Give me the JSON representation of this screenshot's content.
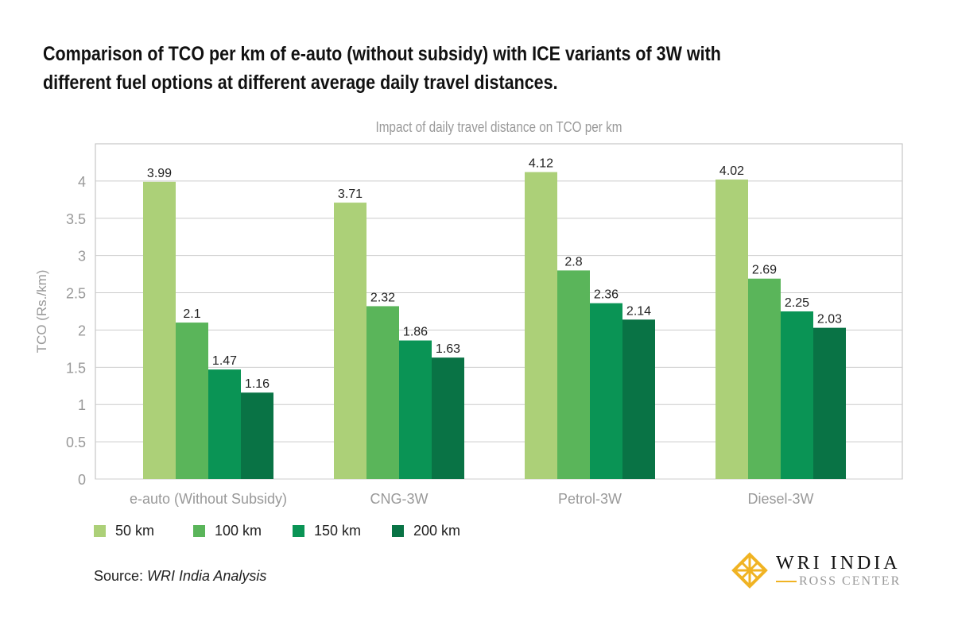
{
  "heading": "Comparison of TCO per km of e-auto (without subsidy) with ICE variants of 3W with different fuel options at different average daily travel distances.",
  "source_label": "Source: ",
  "source_value": "WRI India Analysis",
  "logo": {
    "line1": "WRI INDIA",
    "line2": "ROSS CENTER"
  },
  "chart_data": {
    "type": "bar",
    "title": "Impact of daily travel distance on TCO per km",
    "xlabel": "",
    "ylabel": "TCO (Rs./km)",
    "ylim": [
      0,
      4.5
    ],
    "yticks": [
      "0",
      "0.5",
      "1",
      "1.5",
      "2",
      "2.5",
      "3",
      "3.5",
      "4"
    ],
    "grid": true,
    "legend_position": "bottom-left",
    "categories": [
      "e-auto (Without Subsidy)",
      "CNG-3W",
      "Petrol-3W",
      "Diesel-3W"
    ],
    "series": [
      {
        "name": "50 km",
        "color": "#acd078",
        "values": [
          3.99,
          3.71,
          4.12,
          4.02
        ]
      },
      {
        "name": "100 km",
        "color": "#5ab55a",
        "values": [
          2.1,
          2.32,
          2.8,
          2.69
        ]
      },
      {
        "name": "150 km",
        "color": "#0a9455",
        "values": [
          1.47,
          1.86,
          2.36,
          2.25
        ]
      },
      {
        "name": "200 km",
        "color": "#097345",
        "values": [
          1.16,
          1.63,
          2.14,
          2.03
        ]
      }
    ]
  }
}
